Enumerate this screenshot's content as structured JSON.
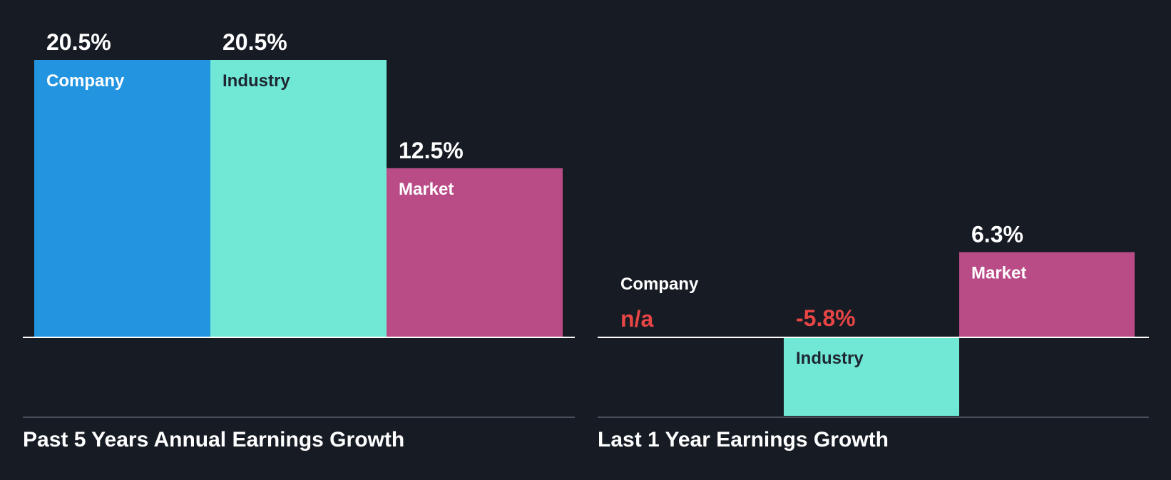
{
  "colors": {
    "background": "#161b24",
    "company": "#2394e0",
    "industry": "#71e8d6",
    "market": "#b94b87",
    "value_text": "#ffffff",
    "negative_text": "#e84545",
    "label_on_dark": "#ffffff",
    "label_on_light": "#1d2631",
    "axis": "#ffffff",
    "divider": "#4a505a"
  },
  "chart_data": [
    {
      "type": "bar",
      "title": "Past 5 Years Annual Earnings Growth",
      "unit": "%",
      "categories": [
        "Company",
        "Industry",
        "Market"
      ],
      "values": [
        20.5,
        20.5,
        12.5
      ],
      "value_labels": [
        "20.5%",
        "20.5%",
        "12.5%"
      ],
      "ylim": [
        -5.8,
        20.5
      ]
    },
    {
      "type": "bar",
      "title": "Last 1 Year Earnings Growth",
      "unit": "%",
      "categories": [
        "Company",
        "Industry",
        "Market"
      ],
      "values": [
        null,
        -5.8,
        6.3
      ],
      "value_labels": [
        "n/a",
        "-5.8%",
        "6.3%"
      ],
      "ylim": [
        -5.8,
        20.5
      ]
    }
  ]
}
